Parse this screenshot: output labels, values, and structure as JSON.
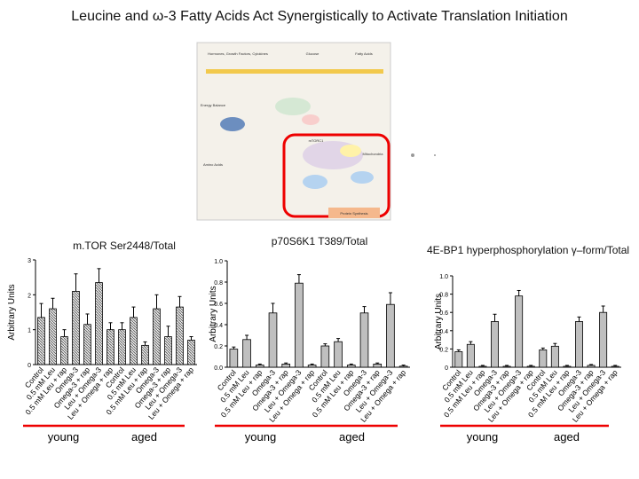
{
  "title": "Leucine and ω-3 Fatty Acids Act Synergistically to Activate Translation Initiation",
  "diagram": {
    "labels": [
      "Hormones, Growth Factors, Cytokines",
      "Glucose",
      "Fatty Acids",
      "Energy Balance",
      "Amino Acids",
      "mTORC1",
      "Mitochondria",
      "Protein Synthesis"
    ]
  },
  "chart_data": [
    {
      "type": "bar",
      "title": "m.TOR Ser2448/Total",
      "ylabel": "Arbitrary Units",
      "color": "#d9d9d9",
      "categories": [
        "Control",
        "0.5 mM Leu",
        "0.5 mM Leu + rap",
        "Omega-3",
        "Omega-3 + rap",
        "Leu + Omega-3",
        "Leu + Omega + rap",
        "Control",
        "0.5 mM Leu",
        "0.5 mM Leu + rap",
        "Omega-3",
        "Omega-3 + rap",
        "Leu + Omega-3",
        "Leu + Omega + rap"
      ],
      "groups": [
        "young",
        "aged"
      ],
      "values": [
        1.35,
        1.6,
        0.8,
        2.1,
        1.15,
        2.35,
        1.0,
        1.0,
        1.35,
        0.55,
        1.6,
        0.8,
        1.65,
        0.7
      ],
      "errors": [
        0.4,
        0.3,
        0.2,
        0.5,
        0.3,
        0.4,
        0.2,
        0.2,
        0.3,
        0.1,
        0.4,
        0.3,
        0.3,
        0.1
      ],
      "ylim": [
        0,
        3
      ],
      "yticks": [
        0,
        1,
        2,
        3
      ]
    },
    {
      "type": "bar",
      "title": "p70S6K1 T389/Total",
      "ylabel": "Arbitrary Units",
      "color": "#bfbfbf",
      "categories": [
        "Control",
        "0.5 mM Leu",
        "0.5 mM Leu + rap",
        "Omega-3",
        "Omega-3 + rap",
        "Leu + Omega-3",
        "Leu + Omega + rap",
        "Control",
        "0.5 mM Leu",
        "0.5 mM Leu + rap",
        "Omega-3",
        "Omega-3 + rap",
        "Leu + Omega-3",
        "Leu + Omega + rap"
      ],
      "groups": [
        "young",
        "aged"
      ],
      "values": [
        0.17,
        0.26,
        0.02,
        0.51,
        0.03,
        0.79,
        0.02,
        0.2,
        0.24,
        0.02,
        0.51,
        0.03,
        0.59,
        0.01
      ],
      "errors": [
        0.02,
        0.04,
        0.01,
        0.09,
        0.01,
        0.08,
        0.01,
        0.02,
        0.03,
        0.01,
        0.06,
        0.01,
        0.11,
        0.01
      ],
      "ylim": [
        0,
        1
      ],
      "yticks": [
        {
          "value": 0,
          "label": "0.0"
        },
        0.2,
        0.4,
        0.6,
        0.8,
        {
          "value": 1,
          "label": "1.0"
        }
      ]
    },
    {
      "type": "bar",
      "title": "4E-BP1 hyperphosphorylation γ–form/Total",
      "ylabel": "Arbitrary Units",
      "color": "#bfbfbf",
      "categories": [
        "Control",
        "0.5 mM Leu",
        "0.5 mM Leu + rap",
        "Omega-3",
        "Omega-3 + rap",
        "Leu + Omega-3",
        "Leu + Omega + rap",
        "Control",
        "0.5 mM Leu",
        "0.5 mM Leu + rap",
        "Omega-3",
        "Omega-3 + rap",
        "Leu + Omega-3",
        "Leu + Omega + rap"
      ],
      "groups": [
        "young",
        "aged"
      ],
      "values": [
        0.17,
        0.25,
        0.01,
        0.5,
        0.01,
        0.78,
        0.01,
        0.19,
        0.23,
        0.01,
        0.5,
        0.02,
        0.6,
        0.01
      ],
      "errors": [
        0.02,
        0.03,
        0.01,
        0.08,
        0.01,
        0.06,
        0.01,
        0.02,
        0.03,
        0.01,
        0.05,
        0.01,
        0.07,
        0.01
      ],
      "ylim": [
        0,
        1
      ],
      "yticks": [
        0,
        0.2,
        0.4,
        0.6,
        0.8,
        {
          "value": 1,
          "label": "1.0"
        }
      ]
    }
  ]
}
